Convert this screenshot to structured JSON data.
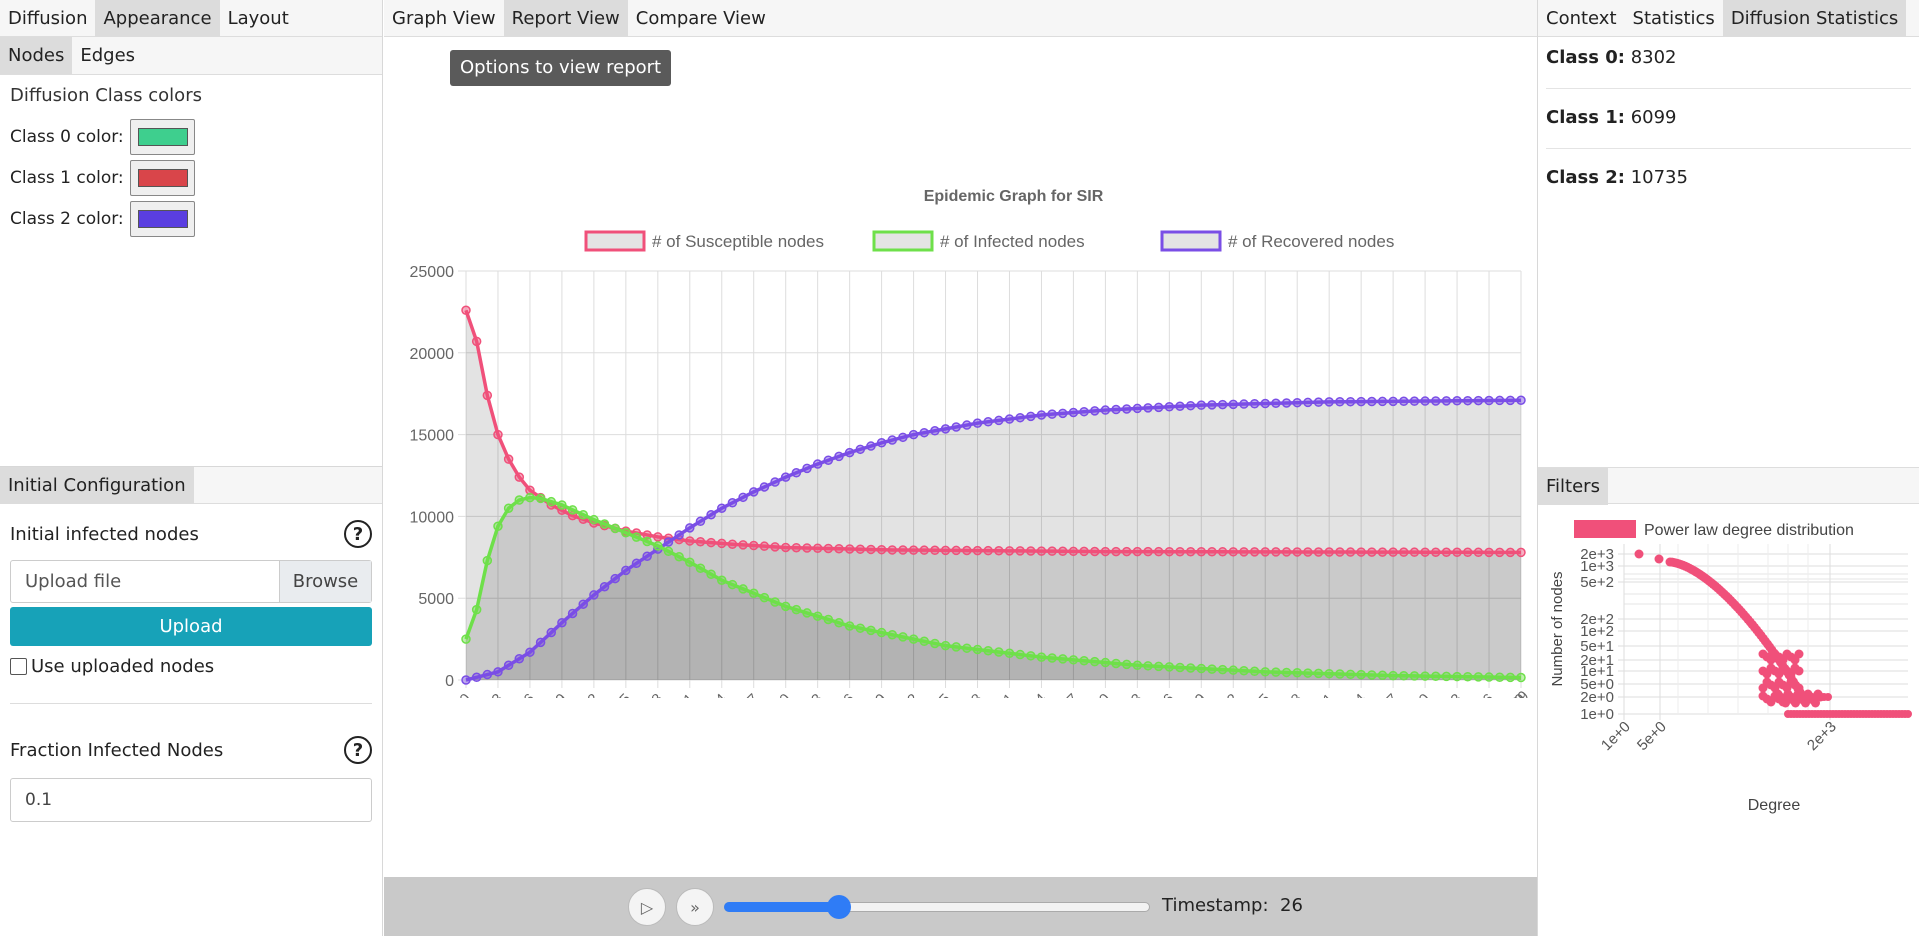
{
  "left": {
    "tabs": [
      "Diffusion",
      "Appearance",
      "Layout"
    ],
    "active_tab": 1,
    "subtabs": [
      "Nodes",
      "Edges"
    ],
    "active_subtab": 0,
    "colors_title": "Diffusion Class colors",
    "classes": [
      {
        "label": "Class 0 color:",
        "color": "#3ecf8e"
      },
      {
        "label": "Class 1 color:",
        "color": "#d9454a"
      },
      {
        "label": "Class 2 color:",
        "color": "#5a3ee0"
      }
    ],
    "init_tab": "Initial Configuration",
    "initial_infected_label": "Initial infected nodes",
    "help_glyph": "?",
    "file_placeholder": "Upload file",
    "browse_label": "Browse",
    "upload_label": "Upload",
    "use_uploaded_label": "Use uploaded nodes",
    "fraction_label": "Fraction Infected Nodes",
    "fraction_value": "0.1"
  },
  "center": {
    "tabs": [
      "Graph View",
      "Report View",
      "Compare View"
    ],
    "active_tab": 1,
    "options_button": "Options to view report",
    "timestamp_label": "Timestamp:",
    "timestamp_value": "26",
    "slider_fraction": 0.27,
    "play_icon": "play-icon",
    "fast_forward_icon": "fast-forward-icon"
  },
  "right": {
    "tabs": [
      "Context",
      "Statistics",
      "Diffusion Statistics"
    ],
    "active_tab": 2,
    "stats": [
      {
        "label": "Class 0:",
        "value": "8302"
      },
      {
        "label": "Class 1:",
        "value": "6099"
      },
      {
        "label": "Class 2:",
        "value": "10735"
      }
    ],
    "filters_tab": "Filters"
  },
  "chart_data": [
    {
      "type": "line",
      "title": "Epidemic Graph for SIR",
      "x_range": [
        0,
        99
      ],
      "x_tick_step": 3,
      "ylim": [
        0,
        25000
      ],
      "y_ticks": [
        0,
        5000,
        10000,
        15000,
        20000,
        25000
      ],
      "grid": true,
      "legend_position": "top",
      "series": [
        {
          "name": "# of Susceptible nodes",
          "color": "#f0507a",
          "model": "S"
        },
        {
          "name": "# of Infected nodes",
          "color": "#6ee04a",
          "model": "I"
        },
        {
          "name": "# of Recovered nodes",
          "color": "#7a4ee6",
          "model": "R"
        }
      ],
      "key_points": {
        "S": [
          [
            0,
            22600
          ],
          [
            1,
            20700
          ],
          [
            2,
            17400
          ],
          [
            3,
            15000
          ],
          [
            4,
            13500
          ],
          [
            5,
            12400
          ],
          [
            6,
            11600
          ],
          [
            8,
            10700
          ],
          [
            10,
            10050
          ],
          [
            12,
            9600
          ],
          [
            15,
            9100
          ],
          [
            18,
            8750
          ],
          [
            21,
            8500
          ],
          [
            25,
            8300
          ],
          [
            30,
            8100
          ],
          [
            40,
            7950
          ],
          [
            60,
            7850
          ],
          [
            99,
            7800
          ]
        ],
        "I": [
          [
            0,
            2500
          ],
          [
            1,
            4300
          ],
          [
            2,
            7300
          ],
          [
            3,
            9400
          ],
          [
            4,
            10500
          ],
          [
            5,
            11000
          ],
          [
            6,
            11150
          ],
          [
            7,
            11100
          ],
          [
            9,
            10700
          ],
          [
            12,
            9800
          ],
          [
            15,
            9000
          ],
          [
            18,
            8200
          ],
          [
            21,
            7200
          ],
          [
            24,
            6100
          ],
          [
            30,
            4500
          ],
          [
            36,
            3300
          ],
          [
            45,
            2100
          ],
          [
            54,
            1400
          ],
          [
            63,
            900
          ],
          [
            75,
            500
          ],
          [
            87,
            270
          ],
          [
            99,
            150
          ]
        ],
        "R": [
          [
            0,
            0
          ],
          [
            3,
            500
          ],
          [
            6,
            1700
          ],
          [
            9,
            3500
          ],
          [
            12,
            5200
          ],
          [
            15,
            6700
          ],
          [
            18,
            8000
          ],
          [
            21,
            9300
          ],
          [
            24,
            10500
          ],
          [
            27,
            11500
          ],
          [
            30,
            12400
          ],
          [
            33,
            13200
          ],
          [
            36,
            13900
          ],
          [
            39,
            14500
          ],
          [
            42,
            15000
          ],
          [
            48,
            15700
          ],
          [
            54,
            16200
          ],
          [
            60,
            16500
          ],
          [
            69,
            16800
          ],
          [
            81,
            17000
          ],
          [
            99,
            17100
          ]
        ]
      }
    },
    {
      "type": "scatter",
      "title": "Power law degree distribution",
      "xlabel": "Degree",
      "ylabel": "Number of nodes",
      "x_scale": "log",
      "y_scale": "log",
      "x_ticks": [
        "1e+0",
        "5e+0",
        "2e+3"
      ],
      "y_ticks": [
        "1e+0",
        "2e+0",
        "5e+0",
        "1e+1",
        "2e+1",
        "5e+1",
        "1e+2",
        "2e+2",
        "5e+2",
        "1e+3",
        "2e+3"
      ],
      "color": "#f0507a",
      "legend_position": "top"
    }
  ]
}
